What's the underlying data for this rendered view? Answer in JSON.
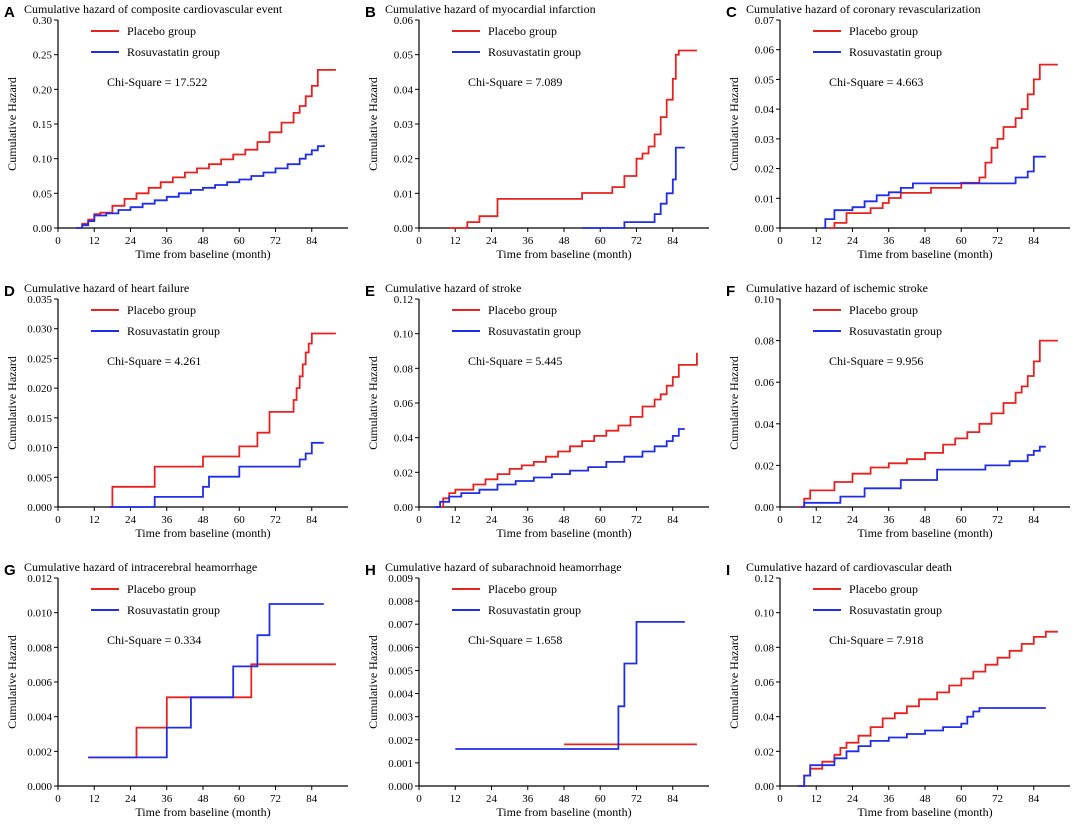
{
  "chart_data": [
    {
      "panel_label": "A",
      "type": "line",
      "title": "Cumulative hazard of composite cardiovascular event",
      "xlabel": "Time from baseline (month)",
      "ylabel": "Cumulative Hazard",
      "xlim": [
        0,
        96
      ],
      "ylim": [
        0,
        0.3
      ],
      "xticks": [
        0,
        12,
        24,
        36,
        48,
        60,
        72,
        84
      ],
      "yticks": [
        0.0,
        0.05,
        0.1,
        0.15,
        0.2,
        0.25,
        0.3
      ],
      "ytick_labels": [
        "0.00",
        "0.05",
        "0.10",
        "0.15",
        "0.20",
        "0.25",
        "0.30"
      ],
      "annotation": "Chi-Square = 17.522",
      "series": [
        {
          "name": "Placebo group",
          "color": "#e8221f",
          "x": [
            6,
            8,
            10,
            12,
            14,
            18,
            22,
            26,
            30,
            34,
            38,
            42,
            46,
            50,
            54,
            58,
            62,
            66,
            70,
            74,
            78,
            80,
            82,
            84,
            86,
            92
          ],
          "y": [
            0,
            0.006,
            0.012,
            0.02,
            0.022,
            0.032,
            0.042,
            0.05,
            0.058,
            0.066,
            0.073,
            0.08,
            0.086,
            0.092,
            0.099,
            0.106,
            0.113,
            0.124,
            0.138,
            0.152,
            0.166,
            0.176,
            0.19,
            0.205,
            0.228,
            0.228
          ]
        },
        {
          "name": "Rosuvastatin group",
          "color": "#1f2ee8",
          "x": [
            6,
            8,
            10,
            12,
            16,
            20,
            24,
            28,
            32,
            36,
            40,
            44,
            48,
            52,
            56,
            60,
            64,
            68,
            72,
            76,
            80,
            82,
            84,
            86,
            88
          ],
          "y": [
            0,
            0.004,
            0.01,
            0.018,
            0.021,
            0.026,
            0.03,
            0.035,
            0.04,
            0.045,
            0.05,
            0.055,
            0.058,
            0.062,
            0.066,
            0.07,
            0.075,
            0.08,
            0.086,
            0.092,
            0.1,
            0.106,
            0.112,
            0.118,
            0.12
          ]
        }
      ]
    },
    {
      "panel_label": "B",
      "type": "line",
      "title": "Cumulative hazard of myocardial infarction",
      "xlabel": "Time from baseline (month)",
      "ylabel": "Cumulative Hazard",
      "xlim": [
        0,
        96
      ],
      "ylim": [
        0,
        0.06
      ],
      "xticks": [
        0,
        12,
        24,
        36,
        48,
        60,
        72,
        84
      ],
      "yticks": [
        0.0,
        0.01,
        0.02,
        0.03,
        0.04,
        0.05,
        0.06
      ],
      "ytick_labels": [
        "0.00",
        "0.01",
        "0.02",
        "0.03",
        "0.04",
        "0.05",
        "0.06"
      ],
      "annotation": "Chi-Square = 7.089",
      "series": [
        {
          "name": "Placebo group",
          "color": "#e8221f",
          "x": [
            10,
            16,
            20,
            26,
            54,
            64,
            68,
            72,
            74,
            76,
            78,
            80,
            82,
            84,
            85,
            86,
            92
          ],
          "y": [
            0,
            0.0017,
            0.0034,
            0.0084,
            0.0101,
            0.0118,
            0.015,
            0.02,
            0.0215,
            0.0235,
            0.027,
            0.032,
            0.037,
            0.043,
            0.05,
            0.0512,
            0.0512
          ]
        },
        {
          "name": "Rosuvastatin group",
          "color": "#1f2ee8",
          "x": [
            54,
            68,
            78,
            80,
            82,
            84,
            85,
            88
          ],
          "y": [
            0,
            0.0017,
            0.004,
            0.007,
            0.01,
            0.014,
            0.0232,
            0.0232
          ]
        }
      ]
    },
    {
      "panel_label": "C",
      "type": "line",
      "title": "Cumulative hazard of coronary revascularization",
      "xlabel": "Time from baseline (month)",
      "ylabel": "Cumulative Hazard",
      "xlim": [
        0,
        96
      ],
      "ylim": [
        0,
        0.07
      ],
      "xticks": [
        0,
        12,
        24,
        36,
        48,
        60,
        72,
        84
      ],
      "yticks": [
        0.0,
        0.01,
        0.02,
        0.03,
        0.04,
        0.05,
        0.06,
        0.07
      ],
      "ytick_labels": [
        "0.00",
        "0.01",
        "0.02",
        "0.03",
        "0.04",
        "0.05",
        "0.06",
        "0.07"
      ],
      "annotation": "Chi-Square = 4.663",
      "series": [
        {
          "name": "Placebo group",
          "color": "#e8221f",
          "x": [
            16,
            18,
            22,
            30,
            34,
            36,
            40,
            50,
            60,
            66,
            68,
            70,
            72,
            74,
            78,
            80,
            82,
            84,
            86,
            92
          ],
          "y": [
            0,
            0.0017,
            0.005,
            0.0067,
            0.0084,
            0.0101,
            0.0118,
            0.0135,
            0.0152,
            0.017,
            0.022,
            0.027,
            0.03,
            0.034,
            0.037,
            0.04,
            0.045,
            0.05,
            0.055,
            0.055
          ]
        },
        {
          "name": "Rosuvastatin group",
          "color": "#1f2ee8",
          "x": [
            14,
            15,
            18,
            24,
            28,
            32,
            36,
            40,
            44,
            78,
            82,
            84,
            88
          ],
          "y": [
            0,
            0.003,
            0.006,
            0.007,
            0.009,
            0.011,
            0.012,
            0.0135,
            0.015,
            0.017,
            0.019,
            0.024,
            0.024
          ]
        }
      ]
    },
    {
      "panel_label": "D",
      "type": "line",
      "title": "Cumulative hazard of heart failure",
      "xlabel": "Time from baseline (month)",
      "ylabel": "Cumulative Hazard",
      "xlim": [
        0,
        96
      ],
      "ylim": [
        0,
        0.035
      ],
      "xticks": [
        0,
        12,
        24,
        36,
        48,
        60,
        72,
        84
      ],
      "yticks": [
        0.0,
        0.005,
        0.01,
        0.015,
        0.02,
        0.025,
        0.03,
        0.035
      ],
      "ytick_labels": [
        "0.000",
        "0.005",
        "0.010",
        "0.015",
        "0.020",
        "0.025",
        "0.030",
        "0.035"
      ],
      "annotation": "Chi-Square = 4.261",
      "series": [
        {
          "name": "Placebo group",
          "color": "#e8221f",
          "x": [
            17,
            18,
            32,
            48,
            60,
            66,
            70,
            78,
            79,
            80,
            81,
            82,
            83,
            84,
            92
          ],
          "y": [
            0,
            0.0034,
            0.0068,
            0.0085,
            0.0102,
            0.0125,
            0.016,
            0.018,
            0.02,
            0.022,
            0.024,
            0.026,
            0.0275,
            0.0292,
            0.0292
          ]
        },
        {
          "name": "Rosuvastatin group",
          "color": "#1f2ee8",
          "x": [
            17,
            32,
            48,
            50,
            60,
            80,
            82,
            84,
            88
          ],
          "y": [
            0,
            0.0017,
            0.0034,
            0.0051,
            0.0068,
            0.008,
            0.009,
            0.0108,
            0.0108
          ]
        }
      ]
    },
    {
      "panel_label": "E",
      "type": "line",
      "title": "Cumulative hazard of stroke",
      "xlabel": "Time from baseline (month)",
      "ylabel": "Cumulative Hazard",
      "xlim": [
        0,
        96
      ],
      "ylim": [
        0,
        0.12
      ],
      "xticks": [
        0,
        12,
        24,
        36,
        48,
        60,
        72,
        84
      ],
      "yticks": [
        0.0,
        0.02,
        0.04,
        0.06,
        0.08,
        0.1,
        0.12
      ],
      "ytick_labels": [
        "0.00",
        "0.02",
        "0.04",
        "0.06",
        "0.08",
        "0.10",
        "0.12"
      ],
      "annotation": "Chi-Square = 5.445",
      "series": [
        {
          "name": "Placebo group",
          "color": "#e8221f",
          "x": [
            6,
            8,
            10,
            12,
            18,
            22,
            26,
            30,
            34,
            38,
            42,
            46,
            50,
            54,
            58,
            62,
            66,
            70,
            74,
            78,
            80,
            82,
            84,
            86,
            92
          ],
          "y": [
            0,
            0.005,
            0.008,
            0.01,
            0.013,
            0.016,
            0.019,
            0.022,
            0.024,
            0.026,
            0.029,
            0.032,
            0.035,
            0.038,
            0.041,
            0.044,
            0.047,
            0.052,
            0.058,
            0.062,
            0.065,
            0.07,
            0.075,
            0.082,
            0.089
          ]
        },
        {
          "name": "Rosuvastatin group",
          "color": "#1f2ee8",
          "x": [
            5,
            7,
            10,
            14,
            20,
            26,
            32,
            38,
            44,
            50,
            56,
            62,
            68,
            74,
            78,
            82,
            84,
            86,
            88
          ],
          "y": [
            0,
            0.003,
            0.006,
            0.008,
            0.01,
            0.013,
            0.015,
            0.017,
            0.019,
            0.021,
            0.023,
            0.026,
            0.029,
            0.032,
            0.035,
            0.038,
            0.041,
            0.045,
            0.045
          ]
        }
      ]
    },
    {
      "panel_label": "F",
      "type": "line",
      "title": "Cumulative hazard of ischemic stroke",
      "xlabel": "Time from baseline (month)",
      "ylabel": "Cumulative Hazard",
      "xlim": [
        0,
        96
      ],
      "ylim": [
        0,
        0.1
      ],
      "xticks": [
        0,
        12,
        24,
        36,
        48,
        60,
        72,
        84
      ],
      "yticks": [
        0.0,
        0.02,
        0.04,
        0.06,
        0.08,
        0.1
      ],
      "ytick_labels": [
        "0.00",
        "0.02",
        "0.04",
        "0.06",
        "0.08",
        "0.10"
      ],
      "annotation": "Chi-Square = 9.956",
      "series": [
        {
          "name": "Placebo group",
          "color": "#e8221f",
          "x": [
            6,
            8,
            10,
            18,
            24,
            30,
            36,
            42,
            48,
            54,
            58,
            62,
            66,
            70,
            74,
            78,
            80,
            82,
            84,
            86,
            92
          ],
          "y": [
            0,
            0.004,
            0.008,
            0.012,
            0.016,
            0.019,
            0.021,
            0.023,
            0.026,
            0.03,
            0.033,
            0.036,
            0.04,
            0.045,
            0.05,
            0.055,
            0.058,
            0.063,
            0.07,
            0.08,
            0.08
          ]
        },
        {
          "name": "Rosuvastatin group",
          "color": "#1f2ee8",
          "x": [
            7,
            8,
            20,
            28,
            40,
            52,
            68,
            76,
            82,
            84,
            86,
            88
          ],
          "y": [
            0,
            0.002,
            0.005,
            0.009,
            0.013,
            0.018,
            0.02,
            0.022,
            0.025,
            0.027,
            0.029,
            0.029
          ]
        }
      ]
    },
    {
      "panel_label": "G",
      "type": "line",
      "title": "Cumulative hazard of intracerebral heamorrhage",
      "xlabel": "Time from baseline (month)",
      "ylabel": "Cumulative Hazard",
      "xlim": [
        0,
        96
      ],
      "ylim": [
        0,
        0.012
      ],
      "xticks": [
        0,
        12,
        24,
        36,
        48,
        60,
        72,
        84
      ],
      "yticks": [
        0.0,
        0.002,
        0.004,
        0.006,
        0.008,
        0.01,
        0.012
      ],
      "ytick_labels": [
        "0.000",
        "0.002",
        "0.004",
        "0.006",
        "0.008",
        "0.010",
        "0.012"
      ],
      "annotation": "Chi-Square = 0.334",
      "series": [
        {
          "name": "Placebo group",
          "color": "#e8221f",
          "x": [
            10,
            26,
            36,
            64,
            92
          ],
          "y": [
            0.00165,
            0.00337,
            0.00512,
            0.00702,
            0.00702
          ]
        },
        {
          "name": "Rosuvastatin group",
          "color": "#1f2ee8",
          "x": [
            10,
            36,
            44,
            58,
            66,
            70,
            88
          ],
          "y": [
            0.00165,
            0.00337,
            0.00512,
            0.0069,
            0.0087,
            0.0105,
            0.0105
          ]
        }
      ]
    },
    {
      "panel_label": "H",
      "type": "line",
      "title": "Cumulative hazard of subarachnoid heamorrhage",
      "xlabel": "Time from baseline (month)",
      "ylabel": "Cumulative Hazard",
      "xlim": [
        0,
        96
      ],
      "ylim": [
        0,
        0.009
      ],
      "xticks": [
        0,
        12,
        24,
        36,
        48,
        60,
        72,
        84
      ],
      "yticks": [
        0.0,
        0.001,
        0.002,
        0.003,
        0.004,
        0.005,
        0.006,
        0.007,
        0.008,
        0.009
      ],
      "ytick_labels": [
        "0.000",
        "0.001",
        "0.002",
        "0.003",
        "0.004",
        "0.005",
        "0.006",
        "0.007",
        "0.008",
        "0.009"
      ],
      "annotation": "Chi-Square = 1.658",
      "series": [
        {
          "name": "Placebo group",
          "color": "#e8221f",
          "x": [
            48,
            92
          ],
          "y": [
            0.0018,
            0.0018
          ]
        },
        {
          "name": "Rosuvastatin group",
          "color": "#1f2ee8",
          "x": [
            12,
            66,
            68,
            72,
            88
          ],
          "y": [
            0.0016,
            0.00345,
            0.0053,
            0.0071,
            0.0071
          ]
        }
      ]
    },
    {
      "panel_label": "I",
      "type": "line",
      "title": "Cumulative hazard of cardiovascular death",
      "xlabel": "Time from baseline (month)",
      "ylabel": "Cumulative Hazard",
      "xlim": [
        0,
        96
      ],
      "ylim": [
        0,
        0.12
      ],
      "xticks": [
        0,
        12,
        24,
        36,
        48,
        60,
        72,
        84
      ],
      "yticks": [
        0.0,
        0.02,
        0.04,
        0.06,
        0.08,
        0.1,
        0.12
      ],
      "ytick_labels": [
        "0.00",
        "0.02",
        "0.04",
        "0.06",
        "0.08",
        "0.10",
        "0.12"
      ],
      "annotation": "Chi-Square = 7.918",
      "series": [
        {
          "name": "Placebo group",
          "color": "#e8221f",
          "x": [
            6,
            8,
            10,
            14,
            18,
            20,
            22,
            26,
            30,
            34,
            38,
            42,
            46,
            52,
            56,
            60,
            64,
            68,
            72,
            76,
            80,
            84,
            88,
            92
          ],
          "y": [
            0,
            0.006,
            0.01,
            0.014,
            0.018,
            0.022,
            0.025,
            0.029,
            0.034,
            0.039,
            0.042,
            0.046,
            0.05,
            0.054,
            0.058,
            0.062,
            0.066,
            0.07,
            0.074,
            0.078,
            0.082,
            0.086,
            0.089,
            0.089
          ]
        },
        {
          "name": "Rosuvastatin group",
          "color": "#1f2ee8",
          "x": [
            6,
            8,
            10,
            18,
            22,
            26,
            30,
            36,
            42,
            48,
            54,
            60,
            62,
            64,
            66,
            88
          ],
          "y": [
            0,
            0.006,
            0.012,
            0.016,
            0.02,
            0.023,
            0.026,
            0.028,
            0.03,
            0.032,
            0.034,
            0.036,
            0.04,
            0.043,
            0.045,
            0.045
          ]
        }
      ]
    }
  ]
}
